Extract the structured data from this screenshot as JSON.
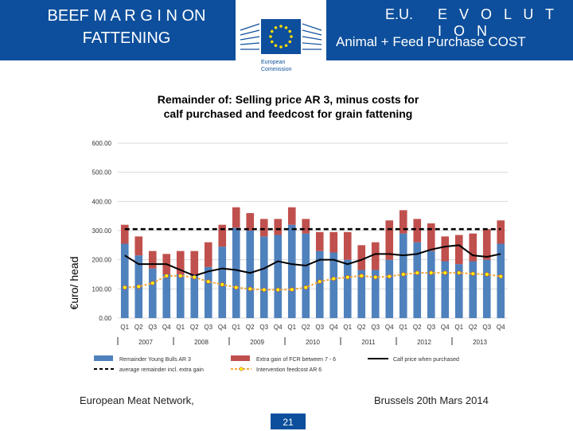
{
  "header": {
    "title_line1": "BEEF M A R G I N ON",
    "title_line2": "FATTENING",
    "eu_label": "E.U.",
    "evolution_label": "E V O L U T I O N",
    "subtitle": "Animal + Feed Purchase COST",
    "logo_line1": "European",
    "logo_line2": "Commission"
  },
  "footer": {
    "left": "European Meat Network,",
    "right": "Brussels 20th Mars 2014",
    "page": "21"
  },
  "colors": {
    "banner": "#0d4f9c",
    "remainder": "#4f81bd",
    "extra_gain": "#c0504d",
    "calf_line": "#000000",
    "feedcost_line": "#f2a83b",
    "feedcost_marker": "#ffff00"
  },
  "chart_data": {
    "type": "bar",
    "title_line1": "Remainder of: Selling price AR 3, minus costs  for",
    "title_line2": "calf purchased  and feedcost for grain fattening",
    "ylabel": "€uro/ head",
    "ylim": [
      0,
      600
    ],
    "yticks": [
      "0.00",
      "100.00",
      "200.00",
      "300.00",
      "400.00",
      "500.00",
      "600.00"
    ],
    "categories": [
      "Q1",
      "Q2",
      "Q3",
      "Q4",
      "Q1",
      "Q2",
      "Q3",
      "Q4",
      "Q1",
      "Q2",
      "Q3",
      "Q4",
      "Q1",
      "Q2",
      "Q3",
      "Q4",
      "Q1",
      "Q2",
      "Q3",
      "Q4",
      "Q1",
      "Q2",
      "Q3",
      "Q4",
      "Q1",
      "Q2",
      "Q3",
      "Q4"
    ],
    "years": [
      "2007",
      "2008",
      "2009",
      "2010",
      "2011",
      "2012",
      "2013"
    ],
    "series": [
      {
        "name": "Remainder Young Bulls AR 3",
        "kind": "stacked-bar",
        "values": [
          255,
          215,
          170,
          150,
          150,
          150,
          175,
          245,
          310,
          300,
          280,
          285,
          320,
          290,
          230,
          225,
          200,
          165,
          165,
          200,
          290,
          260,
          230,
          195,
          185,
          195,
          200,
          255
        ]
      },
      {
        "name": "Extra gain of FCR between 7 - 6",
        "kind": "stacked-bar",
        "values": [
          65,
          65,
          60,
          70,
          80,
          80,
          85,
          75,
          70,
          60,
          60,
          55,
          60,
          50,
          65,
          70,
          95,
          85,
          95,
          135,
          80,
          80,
          95,
          85,
          100,
          95,
          105,
          80
        ]
      },
      {
        "name": "Calf price when purchased",
        "kind": "line",
        "values": [
          215,
          185,
          185,
          185,
          165,
          145,
          160,
          170,
          165,
          155,
          170,
          195,
          185,
          180,
          200,
          200,
          185,
          200,
          220,
          220,
          215,
          220,
          235,
          245,
          250,
          215,
          210,
          220
        ]
      },
      {
        "name": "average remainder incl. extra gain",
        "kind": "dashed-line",
        "values": [
          305,
          305,
          305,
          305,
          305,
          305,
          305,
          305,
          305,
          305,
          305,
          305,
          305,
          305,
          305,
          305,
          305,
          305,
          305,
          305,
          305,
          305,
          305,
          305,
          305,
          305,
          305,
          305
        ]
      },
      {
        "name": "Intervention feedcost AR 6",
        "kind": "line-markers",
        "values": [
          105,
          108,
          120,
          145,
          145,
          140,
          125,
          115,
          105,
          100,
          97,
          97,
          98,
          105,
          125,
          135,
          140,
          145,
          140,
          143,
          150,
          155,
          155,
          155,
          155,
          152,
          150,
          143
        ]
      }
    ]
  }
}
